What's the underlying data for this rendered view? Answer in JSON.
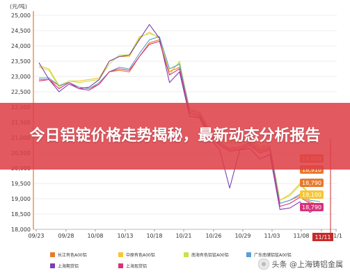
{
  "headline": "今日铝锭价格走势揭秘，最新动态分析报告",
  "watermark": "头条 @上海铸铝金属",
  "colors": {
    "banner": "#de3e46",
    "axis": "#e0792c",
    "grid": "#eeeeee",
    "current_marker": "#c62a2a"
  },
  "chart_data": {
    "type": "line",
    "yunit": "(元/吨)",
    "x_ticks": [
      "09/23",
      "09/28",
      "10/08",
      "10/13",
      "10/18",
      "10/21",
      "10/26",
      "10/29",
      "11/03",
      "11/08",
      "11/11",
      "11/1"
    ],
    "current_label": "11/11",
    "ylim": [
      18000,
      25000
    ],
    "y_ticks": [
      "18,000",
      "18,500",
      "19,000",
      "19,500",
      "20,000",
      "20,500",
      "21,000",
      "21,500",
      "22,000",
      "22,500",
      "23,000",
      "23,500",
      "24,000",
      "24,500",
      "25,000"
    ],
    "grid": true,
    "legend_position": "bottom",
    "series": [
      {
        "name": "长江有色A00铝",
        "color": "#e8792c",
        "values": [
          22900,
          22900,
          22700,
          22800,
          22650,
          22600,
          22750,
          23150,
          23200,
          23150,
          23650,
          24100,
          24200,
          23150,
          23300,
          21850,
          21750,
          21150,
          20800,
          20600,
          20650,
          20800,
          20550,
          20650,
          18850,
          18950,
          19100,
          18900,
          18780
        ]
      },
      {
        "name": "中原有色A00铝",
        "color": "#f6c633",
        "values": [
          23350,
          23250,
          22700,
          22850,
          22850,
          22900,
          22950,
          23500,
          23650,
          23650,
          24250,
          24450,
          24250,
          23150,
          23450,
          21950,
          21850,
          21250,
          21050,
          20850,
          20900,
          21000,
          20700,
          20750,
          18950,
          19150,
          19500,
          19150,
          19000
        ]
      },
      {
        "name": "南海有色铝锭A00铝",
        "color": "#c4e548",
        "values": [
          23300,
          23200,
          22650,
          22850,
          22800,
          22850,
          22900,
          23400,
          23700,
          23700,
          24300,
          24400,
          24300,
          23050,
          23500,
          21850,
          21750,
          21200,
          21000,
          20800,
          20850,
          20950,
          20650,
          20750,
          18950,
          19100,
          19450,
          19150,
          19100
        ]
      },
      {
        "name": "广东南储铝锭A00铝",
        "color": "#5b9ed6",
        "values": [
          22950,
          22950,
          22700,
          22800,
          22650,
          22600,
          22800,
          23150,
          23300,
          23250,
          23750,
          24200,
          24300,
          23250,
          23400,
          21900,
          21800,
          21200,
          20850,
          20650,
          20700,
          20850,
          20600,
          20700,
          18850,
          18950,
          19150,
          18950,
          18910
        ]
      },
      {
        "name": "上海期货铝",
        "color": "#7b3fb5",
        "values": [
          23450,
          22900,
          22500,
          22750,
          22600,
          22650,
          22900,
          23500,
          23650,
          23700,
          24200,
          24700,
          24250,
          22800,
          23150,
          21700,
          21650,
          21000,
          20600,
          19350,
          20600,
          20650,
          20300,
          20450,
          18650,
          18700,
          18900,
          18550,
          18800
        ]
      },
      {
        "name": "上海现货铝",
        "color": "#d8317a",
        "values": [
          22850,
          22900,
          22600,
          22800,
          22600,
          22550,
          22750,
          23150,
          23250,
          23200,
          23650,
          24050,
          24150,
          23050,
          23250,
          21800,
          21700,
          21100,
          20750,
          20550,
          20600,
          20750,
          20500,
          20600,
          18750,
          18850,
          19050,
          18850,
          18790
        ]
      }
    ],
    "value_tags": [
      {
        "text": "19,000",
        "color": "#e8792c"
      },
      {
        "text": "18,910",
        "color": "#e8792c"
      },
      {
        "text": "18,790",
        "color": "#e8792c"
      },
      {
        "text": "19,100",
        "color": "#f6c633"
      },
      {
        "text": "18,790",
        "color": "#d8317a"
      }
    ]
  }
}
